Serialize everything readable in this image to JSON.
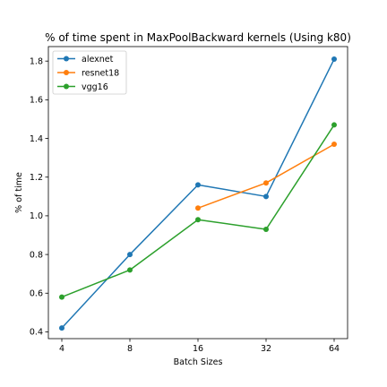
{
  "chart_data": {
    "type": "line",
    "title": "% of time spent in MaxPoolBackward kernels (Using k80)",
    "xlabel": "Batch Sizes",
    "ylabel": "% of time",
    "categories": [
      "4",
      "8",
      "16",
      "32",
      "64"
    ],
    "yticks": [
      "0.4",
      "0.6",
      "0.8",
      "1.0",
      "1.2",
      "1.4",
      "1.6",
      "1.8"
    ],
    "ylim": [
      0.365,
      1.875
    ],
    "grid": false,
    "legend_position": "top-left",
    "series": [
      {
        "name": "alexnet",
        "color": "#1f77b4",
        "values": [
          0.42,
          0.8,
          1.16,
          1.1,
          1.81
        ]
      },
      {
        "name": "resnet18",
        "color": "#ff7f0e",
        "values": [
          null,
          null,
          1.04,
          1.17,
          1.37
        ]
      },
      {
        "name": "vgg16",
        "color": "#2ca02c",
        "values": [
          0.58,
          0.72,
          0.98,
          0.93,
          1.47
        ]
      }
    ]
  }
}
